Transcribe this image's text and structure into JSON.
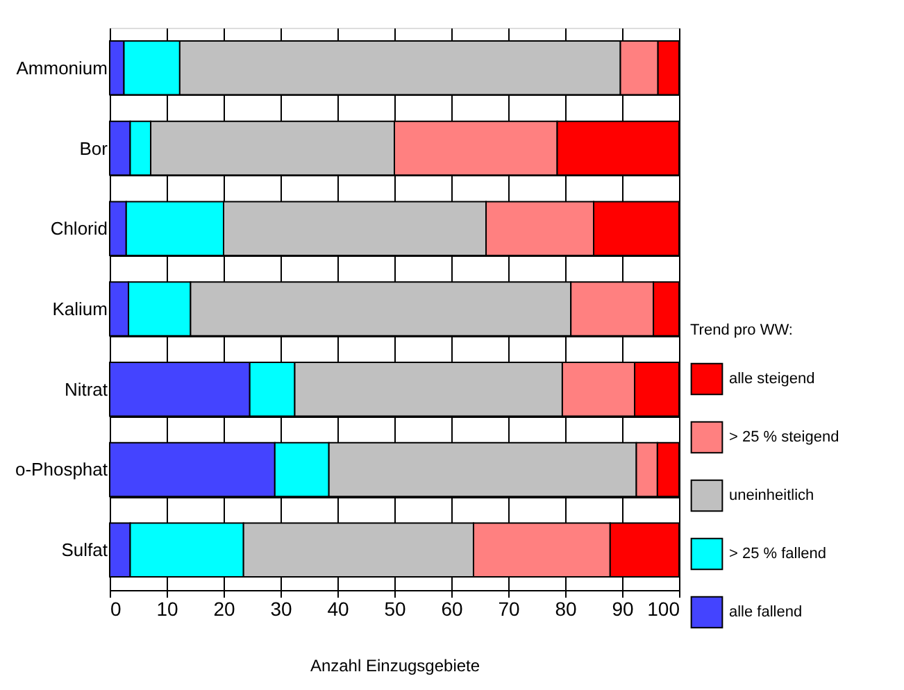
{
  "chart_data": {
    "type": "bar",
    "orientation": "horizontal",
    "stacked": true,
    "xlabel": "Anzahl Einzugsgebiete",
    "legend_title": "Trend pro WW:",
    "categories": [
      "Ammonium",
      "Bor",
      "Chlorid",
      "Kalium",
      "Nitrat",
      "o-Phosphat",
      "Sulfat"
    ],
    "series": [
      {
        "name": "alle fallend",
        "color": "#4444ff",
        "values": [
          2.5,
          3.6,
          2.9,
          3.3,
          24.6,
          29.0,
          3.6
        ]
      },
      {
        "name": "> 25 % fallend",
        "color": "#00ffff",
        "values": [
          9.8,
          3.6,
          17.1,
          10.9,
          7.9,
          9.5,
          19.9
        ]
      },
      {
        "name": "uneinheitlich",
        "color": "#c0c0c0",
        "values": [
          77.4,
          42.8,
          46.1,
          66.8,
          47.0,
          54.0,
          40.4
        ]
      },
      {
        "name": "> 25 % steigend",
        "color": "#ff8080",
        "values": [
          6.6,
          28.6,
          18.9,
          14.5,
          12.7,
          3.7,
          24.0
        ]
      },
      {
        "name": "alle steigend",
        "color": "#ff0000",
        "values": [
          3.7,
          21.4,
          15.0,
          4.5,
          7.8,
          3.8,
          12.1
        ]
      }
    ],
    "xlim": [
      0,
      100
    ],
    "xticks": [
      0,
      10,
      20,
      30,
      40,
      50,
      60,
      70,
      80,
      90,
      100
    ],
    "grid": true,
    "legend": "right"
  }
}
